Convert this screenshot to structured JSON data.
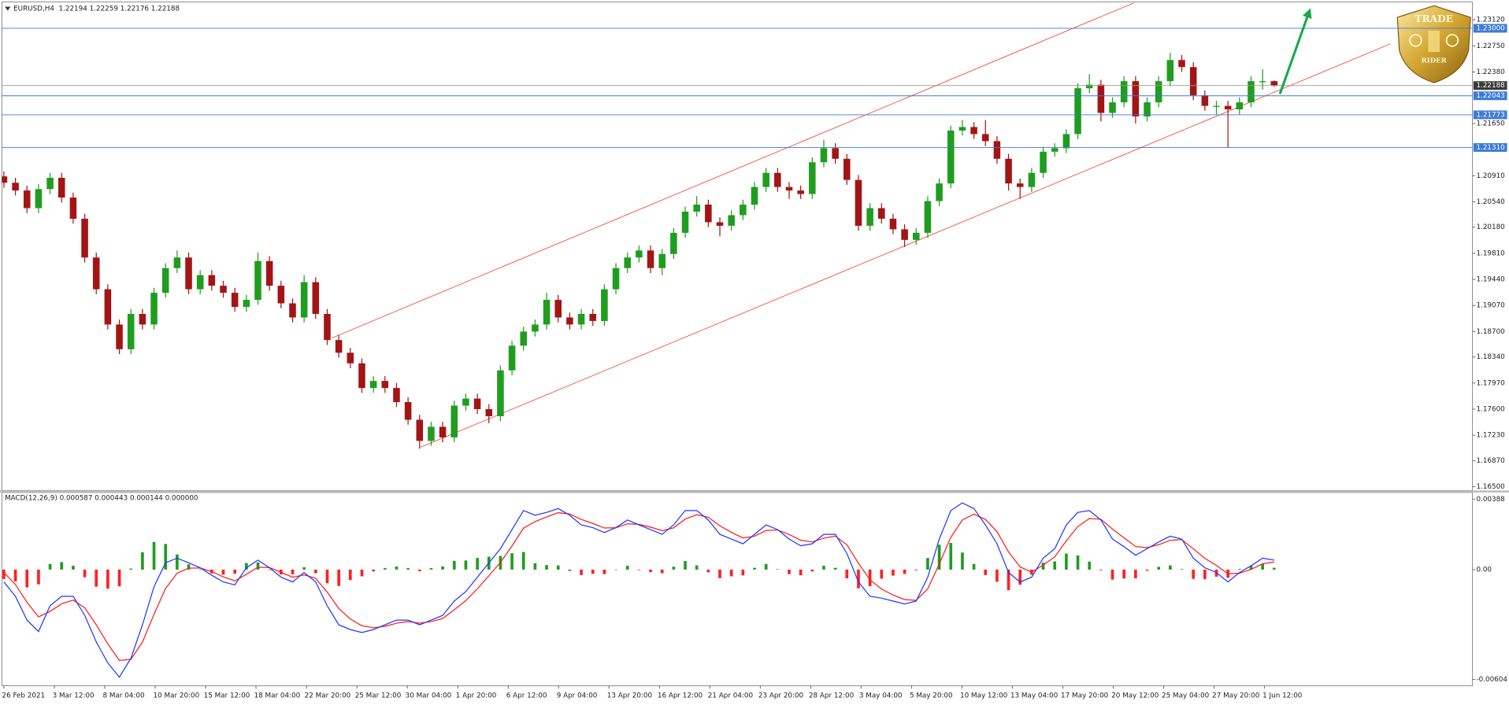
{
  "chart_data": [
    {
      "type": "candlestick",
      "title": "EURUSD,H4  1.22194 1.22259 1.22176 1.22188",
      "up_color": "#1f9d1f",
      "down_color": "#a31515",
      "xlim": [
        -0.17,
        127.17
      ],
      "xticks": [
        {
          "value": 0,
          "label": "26 Feb 2021"
        },
        {
          "value": 4.37,
          "label": "3 Mar 12:00"
        },
        {
          "value": 8.73,
          "label": "8 Mar 04:00"
        },
        {
          "value": 13.1,
          "label": "10 Mar 20:00"
        },
        {
          "value": 17.47,
          "label": "15 Mar 12:00"
        },
        {
          "value": 21.83,
          "label": "18 Mar 04:00"
        },
        {
          "value": 26.2,
          "label": "22 Mar 20:00"
        },
        {
          "value": 30.57,
          "label": "25 Mar 12:00"
        },
        {
          "value": 34.93,
          "label": "30 Mar 04:00"
        },
        {
          "value": 39.3,
          "label": "1 Apr 20:00"
        },
        {
          "value": 43.67,
          "label": "6 Apr 12:00"
        },
        {
          "value": 48.03,
          "label": "9 Apr 04:00"
        },
        {
          "value": 52.4,
          "label": "13 Apr 20:00"
        },
        {
          "value": 56.77,
          "label": "16 Apr 12:00"
        },
        {
          "value": 61.13,
          "label": "21 Apr 04:00"
        },
        {
          "value": 65.5,
          "label": "23 Apr 20:00"
        },
        {
          "value": 69.87,
          "label": "28 Apr 12:00"
        },
        {
          "value": 74.23,
          "label": "3 May 04:00"
        },
        {
          "value": 78.6,
          "label": "5 May 20:00"
        },
        {
          "value": 82.97,
          "label": "10 May 12:00"
        },
        {
          "value": 87.33,
          "label": "13 May 04:00"
        },
        {
          "value": 91.7,
          "label": "17 May 20:00"
        },
        {
          "value": 96.07,
          "label": "20 May 12:00"
        },
        {
          "value": 100.43,
          "label": "25 May 04:00"
        },
        {
          "value": 104.8,
          "label": "27 May 20:00"
        },
        {
          "value": 109.17,
          "label": "1 Jun 12:00"
        }
      ],
      "ylim": [
        1.1646,
        1.2336
      ],
      "yticks": [
        {
          "value": 1.2312,
          "label": "1.23120"
        },
        {
          "value": 1.2275,
          "label": "1.22750"
        },
        {
          "value": 1.2238,
          "label": "1.22380"
        },
        {
          "value": 1.2165,
          "label": "1.21650"
        },
        {
          "value": 1.2091,
          "label": "1.20910"
        },
        {
          "value": 1.2054,
          "label": "1.20540"
        },
        {
          "value": 1.2018,
          "label": "1.20180"
        },
        {
          "value": 1.1981,
          "label": "1.19810"
        },
        {
          "value": 1.1944,
          "label": "1.19440"
        },
        {
          "value": 1.1907,
          "label": "1.19070"
        },
        {
          "value": 1.187,
          "label": "1.18700"
        },
        {
          "value": 1.1834,
          "label": "1.18340"
        },
        {
          "value": 1.1797,
          "label": "1.17970"
        },
        {
          "value": 1.176,
          "label": "1.17600"
        },
        {
          "value": 1.1723,
          "label": "1.17230"
        },
        {
          "value": 1.1687,
          "label": "1.16870"
        },
        {
          "value": 1.165,
          "label": "1.16500"
        }
      ],
      "open": [
        1.209,
        1.2081,
        1.207,
        1.2045,
        1.2072,
        1.2088,
        1.206,
        1.203,
        1.1975,
        1.193,
        1.188,
        1.1845,
        1.1895,
        1.188,
        1.1925,
        1.196,
        1.1975,
        1.193,
        1.195,
        1.1935,
        1.1925,
        1.1905,
        1.1915,
        1.197,
        1.1935,
        1.191,
        1.189,
        1.194,
        1.1895,
        1.1858,
        1.184,
        1.1825,
        1.179,
        1.18,
        1.179,
        1.177,
        1.1745,
        1.1715,
        1.1735,
        1.172,
        1.1765,
        1.1775,
        1.176,
        1.175,
        1.1815,
        1.185,
        1.187,
        1.188,
        1.1915,
        1.189,
        1.188,
        1.1895,
        1.1885,
        1.193,
        1.196,
        1.1975,
        1.1985,
        1.196,
        1.198,
        1.201,
        1.204,
        1.205,
        1.2025,
        1.202,
        1.2035,
        1.205,
        1.2075,
        1.2095,
        1.2075,
        1.207,
        1.2065,
        1.211,
        1.213,
        1.2115,
        1.2085,
        1.202,
        1.2045,
        1.203,
        1.2015,
        1.2,
        1.201,
        1.2055,
        1.208,
        1.2155,
        1.216,
        1.215,
        1.214,
        1.2115,
        1.208,
        1.2075,
        1.2095,
        1.2125,
        1.213,
        1.215,
        1.2215,
        1.222,
        1.218,
        1.2195,
        1.2225,
        1.2175,
        1.2195,
        1.2225,
        1.2255,
        1.2245,
        1.2205,
        1.219,
        1.219,
        1.2185,
        1.2195,
        1.2225,
        1.2225
      ],
      "high": [
        1.2097,
        1.2088,
        1.2077,
        1.2079,
        1.2095,
        1.2095,
        1.2067,
        1.2037,
        1.1982,
        1.1937,
        1.1887,
        1.1902,
        1.1902,
        1.1932,
        1.1967,
        1.1985,
        1.1982,
        1.1957,
        1.1957,
        1.1942,
        1.1932,
        1.1922,
        1.1982,
        1.1977,
        1.1942,
        1.1917,
        1.195,
        1.1947,
        1.1902,
        1.1865,
        1.1847,
        1.1832,
        1.1807,
        1.1807,
        1.1797,
        1.1777,
        1.1752,
        1.1742,
        1.1742,
        1.1772,
        1.1782,
        1.1782,
        1.1767,
        1.1822,
        1.1857,
        1.1877,
        1.1887,
        1.1925,
        1.1922,
        1.1897,
        1.1902,
        1.1902,
        1.1937,
        1.1967,
        1.1982,
        1.1992,
        1.1992,
        1.1987,
        1.2017,
        1.2047,
        1.2062,
        1.2057,
        1.2032,
        1.2042,
        1.2057,
        1.2082,
        1.2102,
        1.2102,
        1.2082,
        1.2077,
        1.2117,
        1.2142,
        1.2137,
        1.2122,
        1.2092,
        1.2052,
        1.2052,
        1.2037,
        1.2022,
        1.2017,
        1.2062,
        1.2087,
        1.2162,
        1.217,
        1.2167,
        1.217,
        1.2147,
        1.2122,
        1.2087,
        1.2102,
        1.2132,
        1.2137,
        1.2157,
        1.2222,
        1.2235,
        1.2227,
        1.2202,
        1.2232,
        1.2232,
        1.2202,
        1.2232,
        1.2265,
        1.2262,
        1.2252,
        1.2212,
        1.2197,
        1.2197,
        1.2202,
        1.2232,
        1.2242,
        1.2226
      ],
      "low": [
        1.2074,
        1.2063,
        1.2038,
        1.2038,
        1.2065,
        1.2053,
        1.2023,
        1.1968,
        1.1923,
        1.1873,
        1.1838,
        1.1838,
        1.1873,
        1.1873,
        1.1918,
        1.1953,
        1.1923,
        1.1923,
        1.1928,
        1.1918,
        1.1898,
        1.1898,
        1.1908,
        1.1928,
        1.1903,
        1.1883,
        1.1883,
        1.1888,
        1.1851,
        1.1833,
        1.1818,
        1.1783,
        1.1783,
        1.1783,
        1.1763,
        1.1738,
        1.1704,
        1.1708,
        1.1713,
        1.1713,
        1.1758,
        1.1753,
        1.174,
        1.1743,
        1.1808,
        1.1843,
        1.1863,
        1.1873,
        1.1883,
        1.1873,
        1.1873,
        1.1878,
        1.1878,
        1.1923,
        1.1953,
        1.1968,
        1.1953,
        1.195,
        1.1973,
        1.2003,
        1.2033,
        1.2018,
        1.2005,
        1.2013,
        1.2028,
        1.2043,
        1.2068,
        1.2068,
        1.2058,
        1.2058,
        1.2058,
        1.2103,
        1.2108,
        1.2078,
        1.2013,
        1.2013,
        1.2023,
        1.2008,
        1.199,
        1.1993,
        1.2003,
        1.2048,
        1.2073,
        1.2148,
        1.2143,
        1.2133,
        1.2108,
        1.207,
        1.2058,
        1.2068,
        1.2088,
        1.2118,
        1.2123,
        1.2143,
        1.2208,
        1.2168,
        1.2173,
        1.2188,
        1.2165,
        1.2168,
        1.2188,
        1.2218,
        1.2238,
        1.2198,
        1.2183,
        1.2178,
        1.2131,
        1.2178,
        1.2188,
        1.2213,
        1.2217
      ],
      "close": [
        1.2081,
        1.207,
        1.2045,
        1.2072,
        1.2088,
        1.206,
        1.203,
        1.1975,
        1.193,
        1.188,
        1.1845,
        1.1895,
        1.188,
        1.1925,
        1.196,
        1.1975,
        1.193,
        1.195,
        1.1935,
        1.1925,
        1.1905,
        1.1915,
        1.197,
        1.1935,
        1.191,
        1.189,
        1.194,
        1.1895,
        1.1858,
        1.184,
        1.1825,
        1.179,
        1.18,
        1.179,
        1.177,
        1.1745,
        1.1715,
        1.1735,
        1.172,
        1.1765,
        1.1775,
        1.176,
        1.175,
        1.1815,
        1.185,
        1.187,
        1.188,
        1.1915,
        1.189,
        1.188,
        1.1895,
        1.1885,
        1.193,
        1.196,
        1.1975,
        1.1985,
        1.196,
        1.198,
        1.201,
        1.204,
        1.205,
        1.2025,
        1.202,
        1.2035,
        1.205,
        1.2075,
        1.2095,
        1.2075,
        1.207,
        1.2065,
        1.211,
        1.213,
        1.2115,
        1.2085,
        1.202,
        1.2045,
        1.203,
        1.2015,
        1.2,
        1.201,
        1.2055,
        1.208,
        1.2155,
        1.216,
        1.215,
        1.214,
        1.2115,
        1.208,
        1.2075,
        1.2095,
        1.2125,
        1.213,
        1.215,
        1.2215,
        1.222,
        1.218,
        1.2195,
        1.2225,
        1.2175,
        1.2195,
        1.2225,
        1.2255,
        1.2245,
        1.2205,
        1.219,
        1.219,
        1.2185,
        1.2195,
        1.2225,
        1.2225,
        1.2219
      ],
      "levels_color": "#3d7bd9",
      "levels": [
        {
          "value": 1.23,
          "label": "1.23000"
        },
        {
          "value": 1.22043,
          "label": "1.22043"
        },
        {
          "value": 1.21773,
          "label": "1.21773"
        },
        {
          "value": 1.2131,
          "label": "1.21310"
        }
      ],
      "last_price": {
        "value": 1.22188,
        "label": "1.22188"
      },
      "channel_color": "#ef4a33",
      "channel": [
        {
          "x": [
            28.42,
            98
          ],
          "y": [
            1.1861,
            1.2337
          ]
        },
        {
          "x": [
            36.08,
            120.08
          ],
          "y": [
            1.1706,
            1.2278
          ]
        }
      ],
      "arrow": {
        "x": [
          110.5,
          113
        ],
        "y": [
          1.2207,
          1.2322
        ],
        "color": "#19a84a"
      }
    },
    {
      "type": "macd",
      "title": "MACD(12,26,9) 0.000587 0.000443 0.000144 0.000000",
      "ylim": [
        -0.00634,
        0.00414
      ],
      "yticks": [
        {
          "value": 0.00388,
          "label": "0.00388"
        },
        {
          "value": 0,
          "label": "0.00"
        },
        {
          "value": -0.00604,
          "label": "-0.00604"
        }
      ],
      "histogram": {
        "up_color": "#1f9d1f",
        "down_color": "#ff2020",
        "values": [
          -0.00052,
          -0.00065,
          -0.00098,
          -0.00081,
          0.00031,
          0.00041,
          0.00021,
          -0.00042,
          -0.00094,
          -0.00105,
          -0.00092,
          6e-05,
          0.00095,
          0.00152,
          0.00141,
          0.00083,
          0.00029,
          1e-05,
          -0.0002,
          -0.00028,
          -0.00022,
          0.00036,
          0.00039,
          -1e-05,
          -0.00027,
          -0.00026,
          0.00013,
          -0.0002,
          -0.00075,
          -0.0009,
          -0.00058,
          -0.00037,
          -0.0001,
          8e-05,
          0.00017,
          8e-05,
          -9e-05,
          8e-05,
          0.00017,
          0.00048,
          0.0005,
          0.00064,
          0.00071,
          0.00075,
          0.0009,
          0.00097,
          0.00035,
          0.00025,
          0.00023,
          -7e-05,
          -0.0003,
          -0.00023,
          -0.00025,
          1e-05,
          0.00021,
          -3e-05,
          -0.00014,
          -0.0002,
          0.00016,
          0.00047,
          0.00023,
          -0.00015,
          -0.00047,
          -0.00037,
          -0.00032,
          0.0001,
          0.00031,
          2e-05,
          -0.00025,
          -0.00031,
          -0.0001,
          0.00021,
          0.0001,
          -0.00048,
          -0.00103,
          -0.00091,
          -0.0005,
          -0.00033,
          -0.00024,
          -4e-05,
          0.00064,
          0.00137,
          0.00147,
          0.00094,
          0.00031,
          -0.0003,
          -0.00067,
          -0.00113,
          -0.00083,
          -0.00028,
          0.00038,
          0.00045,
          0.00088,
          0.00078,
          0.00044,
          -4e-05,
          -0.00055,
          -0.00049,
          -0.00048,
          -6e-05,
          0.00015,
          0.00023,
          3e-05,
          -0.00051,
          -0.00052,
          -0.00039,
          -0.00045,
          4e-05,
          0.0002,
          0.00031,
          0.0001
        ]
      },
      "macd": {
        "color": "#1f35ff",
        "values": [
          -0.00068,
          -0.00147,
          -0.00278,
          -0.00341,
          -0.00199,
          -0.00147,
          -0.00147,
          -0.00252,
          -0.00398,
          -0.00514,
          -0.00592,
          -0.00488,
          -0.00304,
          -0.00094,
          0.00037,
          0.00063,
          0.00037,
          0.0001,
          -0.00031,
          -0.00068,
          -0.00084,
          0.0001,
          0.00052,
          0.0001,
          -0.00042,
          -0.00068,
          -0.00016,
          -0.00068,
          -0.00199,
          -0.00304,
          -0.0033,
          -0.00346,
          -0.0033,
          -0.00304,
          -0.00278,
          -0.00278,
          -0.00304,
          -0.00278,
          -0.00252,
          -0.00173,
          -0.00121,
          -0.00042,
          0.00037,
          0.00115,
          0.0022,
          0.00325,
          0.00299,
          0.00315,
          0.00336,
          0.00299,
          0.00246,
          0.00231,
          0.00204,
          0.00231,
          0.00273,
          0.00246,
          0.0022,
          0.00194,
          0.00246,
          0.00325,
          0.00325,
          0.00273,
          0.00194,
          0.00168,
          0.00142,
          0.00194,
          0.00246,
          0.0022,
          0.00168,
          0.00131,
          0.00142,
          0.00194,
          0.00194,
          0.00089,
          -0.00068,
          -0.00147,
          -0.00157,
          -0.00173,
          -0.00189,
          -0.00173,
          -0.00042,
          0.00168,
          0.00325,
          0.00367,
          0.00336,
          0.00246,
          0.00142,
          -0.00016,
          -0.00068,
          -0.00042,
          0.00063,
          0.00115,
          0.00246,
          0.00315,
          0.00325,
          0.00273,
          0.00168,
          0.00126,
          0.00079,
          0.00115,
          0.00152,
          0.00184,
          0.00168,
          0.00063,
          0.0001,
          -0.00016,
          -0.00068,
          -0.00016,
          0.00021,
          0.00063,
          0.00052
        ]
      },
      "signal": {
        "color": "#ff1a1a",
        "values": [
          -0.00016,
          -0.00082,
          -0.0018,
          -0.0026,
          -0.0023,
          -0.00188,
          -0.00168,
          -0.0021,
          -0.00304,
          -0.00409,
          -0.005,
          -0.00494,
          -0.00399,
          -0.00246,
          -0.00104,
          -0.0002,
          8e-05,
          9e-05,
          -0.00011,
          -0.0004,
          -0.00062,
          -0.00026,
          0.00013,
          0.00011,
          -0.00015,
          -0.00042,
          -0.00029,
          -0.00048,
          -0.00124,
          -0.00214,
          -0.00272,
          -0.00309,
          -0.0032,
          -0.00312,
          -0.00295,
          -0.00286,
          -0.00295,
          -0.00286,
          -0.00269,
          -0.00221,
          -0.00171,
          -0.00106,
          -0.00034,
          0.0004,
          0.0013,
          0.00228,
          0.00264,
          0.0029,
          0.00313,
          0.00306,
          0.00276,
          0.00254,
          0.00229,
          0.0023,
          0.00252,
          0.00249,
          0.00234,
          0.00214,
          0.0023,
          0.00278,
          0.00302,
          0.00288,
          0.00241,
          0.00205,
          0.00174,
          0.00184,
          0.00215,
          0.00218,
          0.00193,
          0.00162,
          0.00152,
          0.00173,
          0.00184,
          0.00137,
          0.00035,
          -0.00056,
          -0.00107,
          -0.0014,
          -0.00165,
          -0.00169,
          -0.00106,
          0.00031,
          0.00178,
          0.00273,
          0.00305,
          0.00276,
          0.00209,
          0.00097,
          0.00015,
          -0.00014,
          0.00025,
          0.0007,
          0.00158,
          0.00237,
          0.00281,
          0.00277,
          0.00223,
          0.00175,
          0.00127,
          0.00121,
          0.00137,
          0.00161,
          0.00165,
          0.00114,
          0.00062,
          0.00023,
          -0.00023,
          -0.0002,
          1e-05,
          0.00032,
          0.00042
        ]
      }
    }
  ],
  "logo": {
    "top": "TRADE",
    "bottom": "RIDER"
  }
}
